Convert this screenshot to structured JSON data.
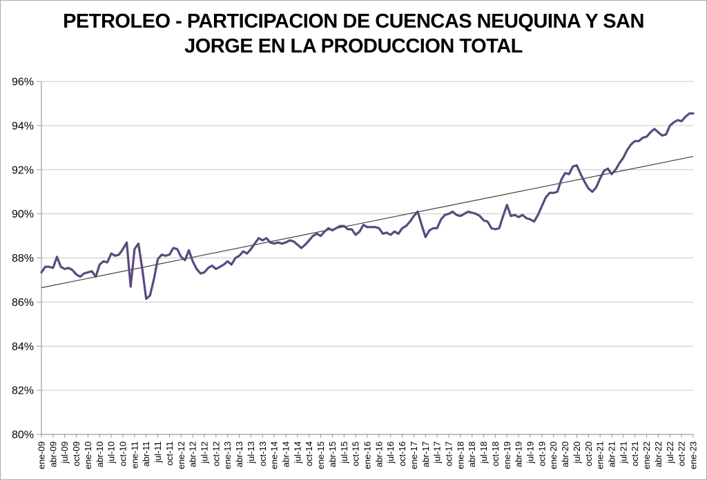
{
  "header": {
    "title_line1": "PETROLEO - PARTICIPACION DE CUENCAS NEUQUINA Y SAN",
    "title_line2": "JORGE EN LA PRODUCCION TOTAL"
  },
  "colors": {
    "background": "#ffffff",
    "border": "#ababab",
    "grid": "#c6c6c6",
    "axis": "#9b9b9b",
    "tick_label": "#000000",
    "title": "#000000"
  },
  "chart_data": {
    "type": "line",
    "title": "PETROLEO - PARTICIPACION DE CUENCAS NEUQUINA Y SAN JORGE EN LA PRODUCCION TOTAL",
    "xlabel": "",
    "ylabel": "",
    "ylim": [
      80,
      96
    ],
    "grid": true,
    "legend_position": "none",
    "y_tick_values": [
      96,
      94,
      92,
      90,
      88,
      86,
      84,
      82,
      80
    ],
    "y_tick_labels": [
      "96%",
      "94%",
      "92%",
      "90%",
      "88%",
      "86%",
      "84%",
      "82%",
      "80%"
    ],
    "x_tick_step_months": 3,
    "x_tick_labels_rotated": true,
    "x_tick_labels": [
      "ene-09",
      "abr-09",
      "jul-09",
      "oct-09",
      "ene-10",
      "abr-10",
      "jul-10",
      "oct-10",
      "ene-11",
      "abr-11",
      "jul-11",
      "oct-11",
      "ene-12",
      "abr-12",
      "jul-12",
      "oct-12",
      "ene-13",
      "abr-13",
      "jul-13",
      "oct-13",
      "ene-14",
      "abr-14",
      "jul-14",
      "oct-14",
      "ene-15",
      "abr-15",
      "jul-15",
      "oct-15",
      "ene-16",
      "abr-16",
      "jul-16",
      "oct-16",
      "ene-17",
      "abr-17",
      "jul-17",
      "oct-17",
      "ene-18",
      "abr-18",
      "jul-18",
      "oct-18",
      "ene-19",
      "abr-19",
      "jul-19",
      "oct-19",
      "ene-20",
      "abr-20",
      "jul-20",
      "oct-20",
      "ene-21",
      "abr-21",
      "jul-21",
      "oct-21",
      "ene-22",
      "abr-22",
      "jul-22",
      "oct-22",
      "ene-23"
    ],
    "series": [
      {
        "color": "#5b4a7d",
        "stroke_width": 3.25,
        "start_month": "ene-09",
        "end_month": "ene-23",
        "frequency": "monthly",
        "values": [
          87.35,
          87.6,
          87.6,
          87.55,
          88.05,
          87.6,
          87.5,
          87.55,
          87.45,
          87.25,
          87.15,
          87.3,
          87.35,
          87.4,
          87.15,
          87.7,
          87.85,
          87.8,
          88.2,
          88.1,
          88.15,
          88.4,
          88.7,
          86.7,
          88.4,
          88.65,
          87.5,
          86.15,
          86.3,
          87.05,
          87.95,
          88.15,
          88.1,
          88.15,
          88.45,
          88.4,
          88.05,
          87.9,
          88.35,
          87.85,
          87.5,
          87.3,
          87.35,
          87.55,
          87.65,
          87.5,
          87.6,
          87.7,
          87.85,
          87.7,
          88.0,
          88.1,
          88.3,
          88.2,
          88.4,
          88.65,
          88.9,
          88.8,
          88.9,
          88.7,
          88.65,
          88.7,
          88.65,
          88.7,
          88.8,
          88.75,
          88.6,
          88.45,
          88.6,
          88.8,
          89.0,
          89.1,
          89.0,
          89.2,
          89.35,
          89.25,
          89.35,
          89.45,
          89.45,
          89.3,
          89.3,
          89.05,
          89.2,
          89.5,
          89.4,
          89.4,
          89.4,
          89.35,
          89.1,
          89.15,
          89.05,
          89.2,
          89.1,
          89.35,
          89.45,
          89.65,
          89.9,
          90.1,
          89.5,
          88.95,
          89.25,
          89.35,
          89.35,
          89.75,
          89.95,
          90.0,
          90.1,
          89.95,
          89.9,
          90.0,
          90.1,
          90.05,
          90.0,
          89.9,
          89.7,
          89.65,
          89.35,
          89.3,
          89.35,
          89.9,
          90.4,
          89.9,
          89.95,
          89.85,
          89.95,
          89.8,
          89.75,
          89.65,
          89.95,
          90.35,
          90.75,
          90.95,
          90.95,
          91.0,
          91.55,
          91.85,
          91.8,
          92.15,
          92.2,
          91.8,
          91.45,
          91.15,
          91.0,
          91.2,
          91.6,
          91.95,
          92.05,
          91.8,
          92.0,
          92.3,
          92.55,
          92.9,
          93.15,
          93.3,
          93.3,
          93.45,
          93.5,
          93.7,
          93.85,
          93.7,
          93.55,
          93.6,
          94.0,
          94.15,
          94.25,
          94.2,
          94.4,
          94.55,
          94.55
        ]
      }
    ],
    "trendline": {
      "type": "linear",
      "color": "#3f3f3f",
      "stroke_width": 1.2,
      "start_value": 86.65,
      "end_value": 92.6
    }
  }
}
